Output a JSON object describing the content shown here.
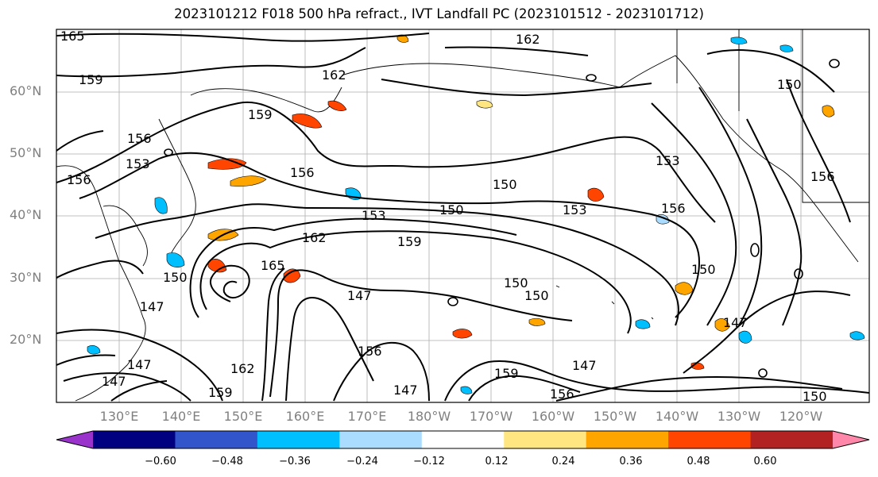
{
  "title": "2023101212 F018 500 hPa refract., IVT Landfall PC (2023101512 - 2023101712)",
  "lat_labels": [
    "60°N",
    "50°N",
    "40°N",
    "30°N",
    "20°N"
  ],
  "lon_labels": [
    "130°E",
    "140°E",
    "150°E",
    "160°E",
    "170°E",
    "180°W",
    "170°W",
    "160°W",
    "150°W",
    "140°W",
    "130°W",
    "120°W"
  ],
  "contour_labels": [
    "165",
    "159",
    "156",
    "153",
    "159",
    "156",
    "162",
    "153",
    "150",
    "162",
    "159",
    "165",
    "150",
    "147",
    "150",
    "150",
    "147",
    "156",
    "159",
    "147",
    "156",
    "153",
    "150",
    "147",
    "162",
    "159",
    "156",
    "147",
    "150",
    "162",
    "147",
    "150",
    "156",
    "150",
    "153",
    "156",
    "147"
  ],
  "colorbar": {
    "colors": [
      "#9933cc",
      "#000080",
      "#3355cc",
      "#00bfff",
      "#aadcff",
      "#ffffff",
      "#ffe680",
      "#ffa500",
      "#ff4500",
      "#b22222",
      "#ff88aa"
    ],
    "ticks": [
      "−0.60",
      "−0.48",
      "−0.36",
      "−0.24",
      "−0.12",
      "0.12",
      "0.24",
      "0.36",
      "0.48",
      "0.60"
    ]
  },
  "fill_colors": {
    "orange": "#ffa500",
    "red": "#ff4500",
    "yellow": "#ffe680",
    "blue": "#00bfff",
    "lightblue": "#aadcff",
    "navy": "#000080"
  }
}
